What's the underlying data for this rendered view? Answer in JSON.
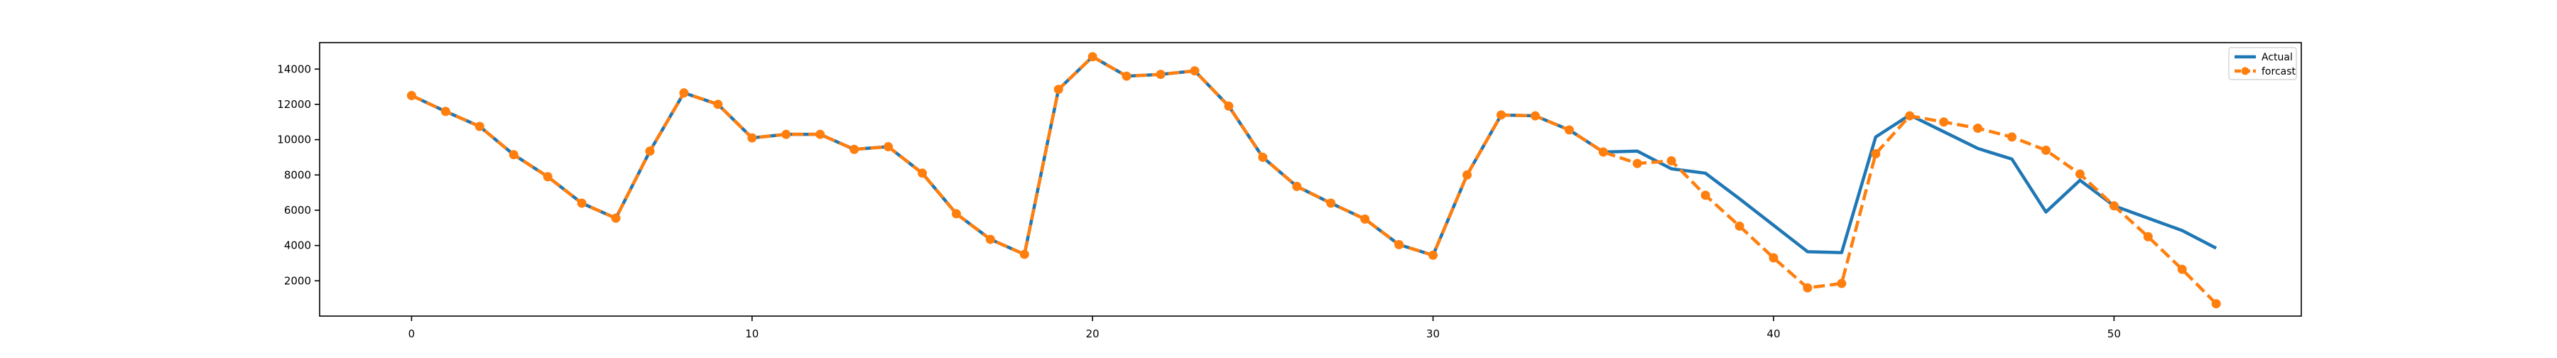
{
  "chart_data": {
    "type": "line",
    "title": "",
    "xlabel": "",
    "ylabel": "",
    "xlim": [
      -2.7,
      55.5
    ],
    "ylim": [
      0,
      15500
    ],
    "x_ticks": [
      0,
      10,
      20,
      30,
      40,
      50
    ],
    "x_tick_labels": [
      "0",
      "10",
      "20",
      "30",
      "40",
      "50"
    ],
    "y_ticks": [
      2000,
      4000,
      6000,
      8000,
      10000,
      12000,
      14000
    ],
    "y_tick_labels": [
      "2000",
      "4000",
      "6000",
      "8000",
      "10000",
      "12000",
      "14000"
    ],
    "grid": false,
    "legend_position": "top-right",
    "x": [
      0,
      1,
      2,
      3,
      4,
      5,
      6,
      7,
      8,
      9,
      10,
      11,
      12,
      13,
      14,
      15,
      16,
      17,
      18,
      19,
      20,
      21,
      22,
      23,
      24,
      25,
      26,
      27,
      28,
      29,
      30,
      31,
      32,
      33,
      34,
      35,
      36,
      37,
      38,
      39,
      40,
      41,
      42,
      43,
      44,
      45,
      46,
      47,
      48,
      49,
      50,
      51,
      52,
      53
    ],
    "series": [
      {
        "name": "Actual",
        "color": "#1f77b4",
        "style": "solid",
        "marker": "none",
        "values": [
          12500,
          11600,
          10750,
          9150,
          7900,
          6400,
          5550,
          9350,
          12650,
          12000,
          10100,
          10300,
          10300,
          9450,
          9600,
          8100,
          5800,
          4350,
          3500,
          12850,
          14700,
          13600,
          13700,
          13900,
          11900,
          9000,
          7350,
          6400,
          5500,
          4050,
          3450,
          8000,
          11400,
          11350,
          10550,
          9300,
          9350,
          8350,
          8100,
          6650,
          5150,
          3650,
          3600,
          10150,
          11400,
          10450,
          9500,
          8900,
          5900,
          7700,
          6250,
          5550,
          4850,
          3850
        ]
      },
      {
        "name": "forcast",
        "color": "#ff7f0e",
        "style": "dashed",
        "marker": "circle",
        "values": [
          12500,
          11600,
          10750,
          9150,
          7900,
          6400,
          5550,
          9350,
          12650,
          12000,
          10100,
          10300,
          10300,
          9450,
          9600,
          8100,
          5800,
          4350,
          3500,
          12850,
          14700,
          13600,
          13700,
          13900,
          11900,
          9000,
          7350,
          6400,
          5500,
          4050,
          3450,
          8000,
          11400,
          11350,
          10550,
          9300,
          8650,
          8800,
          6850,
          5100,
          3300,
          1600,
          1850,
          9200,
          11350,
          11000,
          10650,
          10150,
          9400,
          8050,
          6250,
          4500,
          2650,
          700
        ]
      }
    ]
  }
}
